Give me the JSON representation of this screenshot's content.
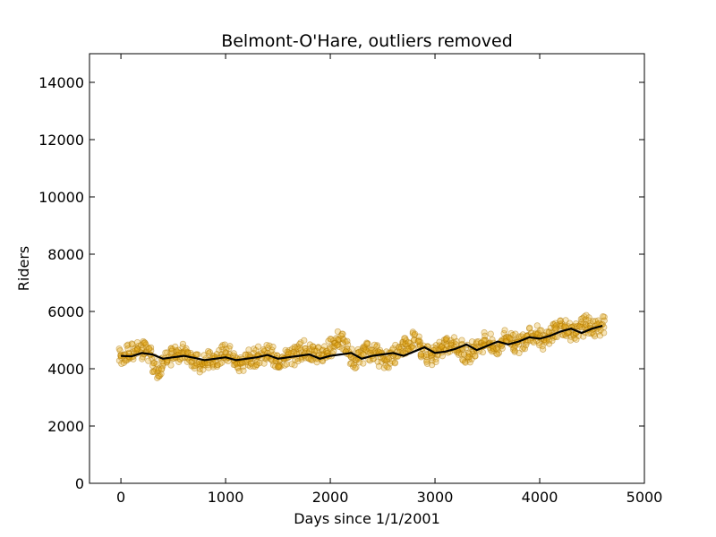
{
  "chart_data": {
    "type": "scatter",
    "title": "Belmont-O'Hare, outliers removed",
    "xlabel": "Days since 1/1/2001",
    "ylabel": "Riders",
    "xlim": [
      -300,
      5000
    ],
    "ylim": [
      0,
      15000
    ],
    "xticks": [
      0,
      1000,
      2000,
      3000,
      4000,
      5000
    ],
    "yticks": [
      0,
      2000,
      4000,
      6000,
      8000,
      10000,
      12000,
      14000
    ],
    "xtick_labels": [
      "0",
      "1000",
      "2000",
      "3000",
      "4000",
      "5000"
    ],
    "ytick_labels": [
      "0",
      "2000",
      "4000",
      "6000",
      "8000",
      "10000",
      "12000",
      "14000"
    ],
    "grid": false,
    "scatter_color": "#e6a817",
    "scatter_edge_color": "#b07800",
    "trend_color": "#000000",
    "series": [
      {
        "kind": "scatter",
        "x": [
          0,
          40,
          80,
          120,
          160,
          200,
          240,
          280,
          320,
          360,
          400,
          440,
          480,
          520,
          560,
          600,
          640,
          680,
          720,
          760,
          800,
          840,
          880,
          920,
          960,
          1000,
          1040,
          1080,
          1120,
          1160,
          1200,
          1240,
          1280,
          1320,
          1360,
          1400,
          1440,
          1480,
          1520,
          1560,
          1600,
          1640,
          1680,
          1720,
          1760,
          1800,
          1840,
          1880,
          1920,
          1960,
          2000,
          2040,
          2080,
          2120,
          2160,
          2200,
          2240,
          2280,
          2320,
          2360,
          2400,
          2440,
          2480,
          2520,
          2560,
          2600,
          2640,
          2680,
          2720,
          2760,
          2800,
          2840,
          2880,
          2920,
          2960,
          3000,
          3040,
          3080,
          3120,
          3160,
          3200,
          3240,
          3280,
          3320,
          3360,
          3400,
          3440,
          3480,
          3520,
          3560,
          3600,
          3640,
          3680,
          3720,
          3760,
          3800,
          3840,
          3880,
          3920,
          3960,
          4000,
          4040,
          4080,
          4120,
          4160,
          4200,
          4240,
          4280,
          4320,
          4360,
          4400,
          4440,
          4480,
          4520,
          4560,
          4600
        ],
        "y": [
          4450,
          4500,
          4520,
          4600,
          4700,
          4650,
          4600,
          4500,
          4200,
          4000,
          4100,
          4300,
          4400,
          4450,
          4550,
          4600,
          4550,
          4400,
          4200,
          4100,
          4200,
          4300,
          4350,
          4400,
          4500,
          4550,
          4500,
          4300,
          4200,
          4200,
          4300,
          4350,
          4400,
          4450,
          4500,
          4550,
          4450,
          4300,
          4300,
          4350,
          4400,
          4450,
          4500,
          4650,
          4700,
          4600,
          4500,
          4450,
          4500,
          4600,
          4750,
          4900,
          5000,
          4900,
          4700,
          4400,
          4300,
          4400,
          4500,
          4600,
          4650,
          4550,
          4400,
          4300,
          4350,
          4450,
          4600,
          4750,
          4850,
          4900,
          5000,
          4950,
          4700,
          4500,
          4450,
          4550,
          4650,
          4700,
          4800,
          4900,
          4850,
          4700,
          4500,
          4550,
          4650,
          4750,
          4900,
          5000,
          4900,
          4700,
          4750,
          4950,
          5100,
          5050,
          4900,
          4850,
          5000,
          5150,
          5250,
          5200,
          5100,
          5000,
          5100,
          5250,
          5400,
          5500,
          5450,
          5300,
          5200,
          5300,
          5450,
          5550,
          5500,
          5400,
          5450,
          5550
        ]
      },
      {
        "kind": "line",
        "x": [
          0,
          100,
          200,
          300,
          400,
          500,
          600,
          700,
          800,
          900,
          1000,
          1100,
          1200,
          1300,
          1400,
          1500,
          1600,
          1700,
          1800,
          1900,
          2000,
          2100,
          2200,
          2300,
          2400,
          2500,
          2600,
          2700,
          2800,
          2900,
          3000,
          3100,
          3200,
          3300,
          3400,
          3500,
          3600,
          3700,
          3800,
          3900,
          4000,
          4100,
          4200,
          4300,
          4400,
          4500,
          4600
        ],
        "y": [
          4450,
          4430,
          4550,
          4500,
          4350,
          4400,
          4450,
          4380,
          4300,
          4350,
          4400,
          4300,
          4350,
          4400,
          4480,
          4350,
          4400,
          4450,
          4500,
          4350,
          4450,
          4500,
          4550,
          4350,
          4450,
          4500,
          4550,
          4450,
          4600,
          4750,
          4550,
          4600,
          4700,
          4850,
          4650,
          4800,
          4950,
          4850,
          4950,
          5100,
          5050,
          5150,
          5300,
          5400,
          5250,
          5400,
          5500
        ]
      }
    ]
  }
}
